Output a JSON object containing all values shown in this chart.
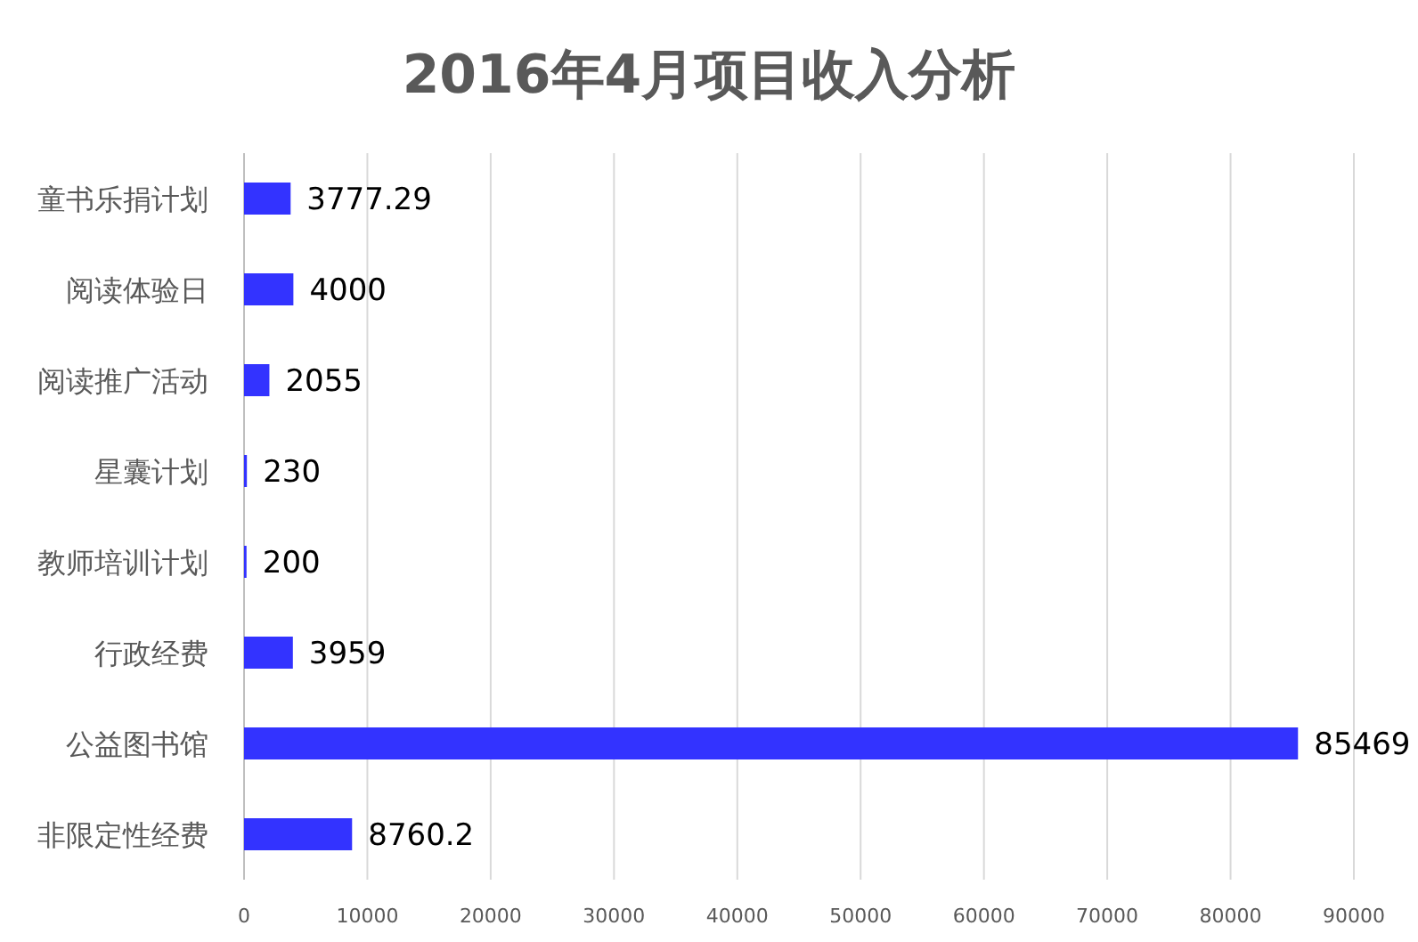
{
  "chart_data": {
    "type": "bar",
    "orientation": "horizontal",
    "title": "2016年4月项目收入分析",
    "categories": [
      "童书乐捐计划",
      "阅读体验日",
      "阅读推广活动",
      "星囊计划",
      "教师培训计划",
      "行政经费",
      "公益图书馆",
      "非限定性经费"
    ],
    "values": [
      3777.29,
      4000,
      2055,
      230,
      200,
      3959,
      85469,
      8760.2
    ],
    "color": "#3333ff",
    "xlim": [
      0,
      90000
    ],
    "xticks": [
      0,
      10000,
      20000,
      30000,
      40000,
      50000,
      60000,
      70000,
      80000,
      90000
    ],
    "grid": "x",
    "data_labels": true
  }
}
